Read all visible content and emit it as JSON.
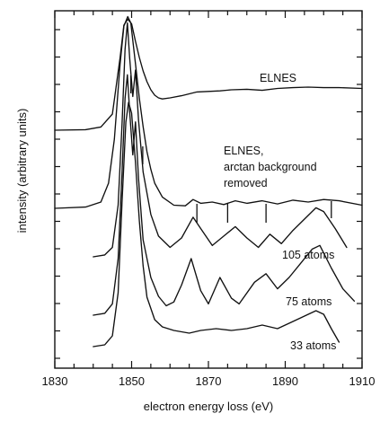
{
  "chart_data": {
    "type": "line",
    "title": "",
    "xlabel": "electron energy loss (eV)",
    "ylabel": "intensity  (arbitrary  units)",
    "xlim": [
      1830,
      1910
    ],
    "x_ticks": [
      1830,
      1850,
      1870,
      1890,
      1910
    ],
    "y_ticks_labeled": false,
    "grid": false,
    "series": [
      {
        "name": "ELNES",
        "points": [
          [
            1830,
            0.5
          ],
          [
            1838,
            0.52
          ],
          [
            1842,
            0.62
          ],
          [
            1845,
            1.1
          ],
          [
            1847,
            3.2
          ],
          [
            1848,
            4.4
          ],
          [
            1849,
            4.62
          ],
          [
            1850,
            4.45
          ],
          [
            1851,
            3.8
          ],
          [
            1852,
            3.2
          ],
          [
            1853,
            2.7
          ],
          [
            1854,
            2.3
          ],
          [
            1855,
            2.0
          ],
          [
            1856,
            1.8
          ],
          [
            1857,
            1.7
          ],
          [
            1858,
            1.66
          ],
          [
            1860,
            1.7
          ],
          [
            1863,
            1.78
          ],
          [
            1867,
            1.92
          ],
          [
            1870,
            1.94
          ],
          [
            1873,
            1.96
          ],
          [
            1876,
            2.0
          ],
          [
            1880,
            2.02
          ],
          [
            1884,
            1.98
          ],
          [
            1888,
            2.05
          ],
          [
            1892,
            2.08
          ],
          [
            1896,
            2.1
          ],
          [
            1900,
            2.08
          ],
          [
            1904,
            2.08
          ],
          [
            1910,
            2.05
          ]
        ]
      },
      {
        "name": "ELNES, arctan background removed",
        "points": [
          [
            1830,
            0.0
          ],
          [
            1838,
            0.02
          ],
          [
            1842,
            0.1
          ],
          [
            1844,
            0.4
          ],
          [
            1845.5,
            1.1
          ],
          [
            1847,
            2.3
          ],
          [
            1848,
            2.9
          ],
          [
            1849,
            3.05
          ],
          [
            1849.8,
            2.95
          ],
          [
            1851,
            2.3
          ],
          [
            1852,
            1.75
          ],
          [
            1853,
            1.3
          ],
          [
            1854,
            0.9
          ],
          [
            1855,
            0.62
          ],
          [
            1856,
            0.4
          ],
          [
            1858,
            0.18
          ],
          [
            1861,
            0.05
          ],
          [
            1864,
            0.04
          ],
          [
            1866,
            0.14
          ],
          [
            1868,
            0.08
          ],
          [
            1871,
            0.1
          ],
          [
            1874,
            0.06
          ],
          [
            1877,
            0.12
          ],
          [
            1880,
            0.08
          ],
          [
            1884,
            0.12
          ],
          [
            1888,
            0.07
          ],
          [
            1892,
            0.13
          ],
          [
            1896,
            0.1
          ],
          [
            1900,
            0.14
          ],
          [
            1904,
            0.12
          ],
          [
            1910,
            0.05
          ]
        ]
      },
      {
        "name": "105 atoms",
        "points": [
          [
            1840,
            0.0
          ],
          [
            1843,
            0.02
          ],
          [
            1845,
            0.1
          ],
          [
            1846.5,
            0.55
          ],
          [
            1847.5,
            1.4
          ],
          [
            1848.3,
            2.2
          ],
          [
            1848.9,
            2.48
          ],
          [
            1849.5,
            2.1
          ],
          [
            1850.3,
            1.7
          ],
          [
            1851,
            1.98
          ],
          [
            1851.8,
            1.45
          ],
          [
            1853,
            0.9
          ],
          [
            1855,
            0.45
          ],
          [
            1857,
            0.22
          ],
          [
            1860,
            0.1
          ],
          [
            1863,
            0.2
          ],
          [
            1866,
            0.42
          ],
          [
            1868,
            0.3
          ],
          [
            1871,
            0.12
          ],
          [
            1874,
            0.22
          ],
          [
            1877,
            0.32
          ],
          [
            1880,
            0.2
          ],
          [
            1883,
            0.1
          ],
          [
            1886,
            0.24
          ],
          [
            1889,
            0.14
          ],
          [
            1892,
            0.28
          ],
          [
            1895,
            0.4
          ],
          [
            1898,
            0.52
          ],
          [
            1900,
            0.48
          ],
          [
            1903,
            0.3
          ],
          [
            1906,
            0.1
          ]
        ]
      },
      {
        "name": "75 atoms",
        "points": [
          [
            1840,
            0.0
          ],
          [
            1843,
            0.02
          ],
          [
            1845,
            0.12
          ],
          [
            1846.5,
            0.6
          ],
          [
            1847.5,
            1.5
          ],
          [
            1848.3,
            2.3
          ],
          [
            1848.9,
            2.55
          ],
          [
            1849.5,
            2.15
          ],
          [
            1850.3,
            1.7
          ],
          [
            1851,
            2.05
          ],
          [
            1851.8,
            1.45
          ],
          [
            1853,
            0.8
          ],
          [
            1855,
            0.4
          ],
          [
            1857,
            0.2
          ],
          [
            1859,
            0.1
          ],
          [
            1861,
            0.14
          ],
          [
            1863,
            0.32
          ],
          [
            1865.5,
            0.6
          ],
          [
            1868,
            0.26
          ],
          [
            1870,
            0.12
          ],
          [
            1873,
            0.4
          ],
          [
            1876,
            0.18
          ],
          [
            1878,
            0.12
          ],
          [
            1882,
            0.35
          ],
          [
            1885,
            0.44
          ],
          [
            1888,
            0.28
          ],
          [
            1891,
            0.4
          ],
          [
            1894,
            0.55
          ],
          [
            1897,
            0.7
          ],
          [
            1899,
            0.74
          ],
          [
            1902,
            0.5
          ],
          [
            1905,
            0.28
          ],
          [
            1908,
            0.15
          ]
        ]
      },
      {
        "name": "33 atoms",
        "points": [
          [
            1840,
            0.0
          ],
          [
            1843,
            0.02
          ],
          [
            1845,
            0.12
          ],
          [
            1846.5,
            0.6
          ],
          [
            1847.5,
            1.6
          ],
          [
            1848.5,
            2.5
          ],
          [
            1849.2,
            2.72
          ],
          [
            1850,
            2.6
          ],
          [
            1851,
            2.05
          ],
          [
            1852,
            1.4
          ],
          [
            1853,
            0.9
          ],
          [
            1854,
            0.55
          ],
          [
            1856,
            0.3
          ],
          [
            1858,
            0.22
          ],
          [
            1861,
            0.18
          ],
          [
            1865,
            0.15
          ],
          [
            1868,
            0.18
          ],
          [
            1872,
            0.2
          ],
          [
            1876,
            0.18
          ],
          [
            1880,
            0.2
          ],
          [
            1884,
            0.24
          ],
          [
            1888,
            0.2
          ],
          [
            1892,
            0.28
          ],
          [
            1895,
            0.34
          ],
          [
            1898,
            0.4
          ],
          [
            1900,
            0.36
          ],
          [
            1902,
            0.2
          ],
          [
            1904,
            0.05
          ]
        ]
      }
    ],
    "markers": [
      1849.8,
      1852.9,
      1867,
      1875,
      1885,
      1902
    ]
  }
}
